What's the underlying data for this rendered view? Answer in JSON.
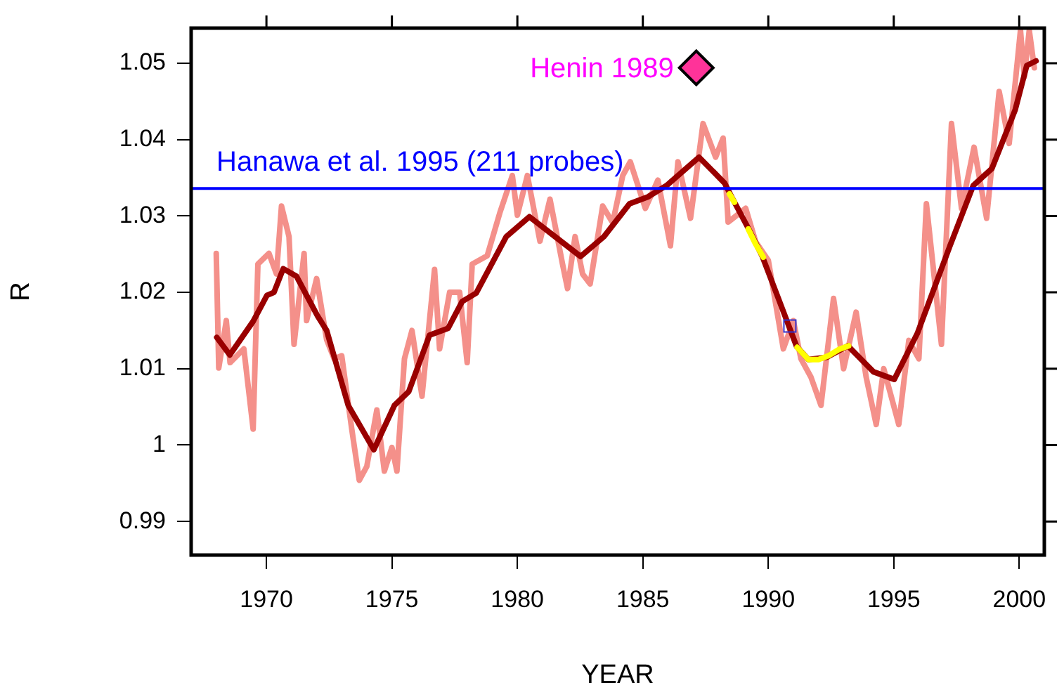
{
  "chart_data": {
    "type": "line",
    "xlabel": "YEAR",
    "ylabel": "R",
    "xlim": [
      1967,
      2001
    ],
    "xticks": [
      1970,
      1975,
      1980,
      1985,
      1990,
      1995,
      2000
    ],
    "ylim": [
      0.9856,
      1.0546
    ],
    "yticks": [
      0.99,
      1.0,
      1.01,
      1.02,
      1.03,
      1.04,
      1.05
    ],
    "grid": false,
    "legend": false,
    "annotations": [
      {
        "text": "Henin 1989",
        "x": 1987.13,
        "y": 1.0494
      }
    ],
    "ref_lines": [
      {
        "axis": "y",
        "value": 1.0336,
        "label": "Hanawa et al. 1995 (211 probes)",
        "color": "#0000ff"
      }
    ],
    "series": [
      {
        "color": "#f4908a",
        "marker": "none",
        "x": [
          1968.0,
          1968.1,
          1968.4,
          1968.55,
          1969.1,
          1969.47,
          1969.66,
          1970.1,
          1970.4,
          1970.6,
          1970.9,
          1971.1,
          1971.5,
          1971.6,
          1972.0,
          1972.4,
          1972.7,
          1973.0,
          1973.4,
          1973.7,
          1974.0,
          1974.4,
          1974.7,
          1975.0,
          1975.2,
          1975.5,
          1975.8,
          1976.2,
          1976.7,
          1976.9,
          1977.3,
          1977.7,
          1978.0,
          1978.2,
          1978.8,
          1979.3,
          1979.8,
          1980.0,
          1980.4,
          1980.9,
          1981.3,
          1981.8,
          1982.0,
          1982.3,
          1982.6,
          1982.9,
          1983.4,
          1983.8,
          1984.2,
          1984.5,
          1985.1,
          1985.6,
          1986.1,
          1986.4,
          1986.9,
          1987.4,
          1987.9,
          1988.2,
          1988.4,
          1989.1,
          1989.5,
          1990.0,
          1990.6,
          1991.0,
          1991.3,
          1991.7,
          1992.1,
          1992.6,
          1993.0,
          1993.5,
          1993.9,
          1994.3,
          1994.6,
          1995.2,
          1995.6,
          1996.0,
          1996.3,
          1996.9,
          1997.3,
          1997.7,
          1998.2,
          1998.7,
          1999.2,
          1999.6,
          2000.05,
          2000.2,
          2000.4,
          2000.6
        ],
        "values": [
          1.0251,
          1.0101,
          1.0163,
          1.0108,
          1.0126,
          1.0021,
          1.0237,
          1.0251,
          1.0224,
          1.0313,
          1.0273,
          1.0132,
          1.0251,
          1.0163,
          1.0218,
          1.0138,
          1.0113,
          1.0117,
          1.0021,
          0.9954,
          0.9972,
          1.0046,
          0.9966,
          0.9997,
          0.9966,
          1.0113,
          1.015,
          1.0064,
          1.023,
          1.0126,
          1.02,
          1.02,
          1.0108,
          1.0237,
          1.0248,
          1.0304,
          1.0353,
          1.0301,
          1.0353,
          1.0267,
          1.0322,
          1.0237,
          1.0205,
          1.0273,
          1.0224,
          1.0211,
          1.0313,
          1.0291,
          1.0353,
          1.0371,
          1.031,
          1.0347,
          1.0261,
          1.0371,
          1.0297,
          1.0421,
          1.0377,
          1.0402,
          1.0292,
          1.031,
          1.0266,
          1.0242,
          1.0126,
          1.0163,
          1.0113,
          1.0089,
          1.0052,
          1.0192,
          1.01,
          1.0174,
          1.0089,
          1.0027,
          1.01,
          1.0027,
          1.0137,
          1.0113,
          1.0316,
          1.0132,
          1.0421,
          1.031,
          1.039,
          1.0297,
          1.0463,
          1.0395,
          1.0543,
          1.0482,
          1.0543,
          1.0494
        ]
      },
      {
        "color": "#990000",
        "marker": "none",
        "x": [
          1968.02,
          1968.54,
          1969.47,
          1970.02,
          1970.3,
          1970.67,
          1971.2,
          1972.04,
          1972.4,
          1973.26,
          1974.28,
          1975.1,
          1975.67,
          1976.5,
          1977.24,
          1977.8,
          1978.36,
          1979.56,
          1980.48,
          1981.5,
          1982.52,
          1983.45,
          1984.47,
          1985.2,
          1985.95,
          1987.24,
          1988.26,
          1988.54,
          1989.28,
          1989.75,
          1990.39,
          1991.13,
          1991.6,
          1992.33,
          1993.17,
          1994.19,
          1995.02,
          1995.95,
          1997.24,
          1998.17,
          1998.91,
          1999.84,
          2000.3,
          2000.67
        ],
        "values": [
          1.0141,
          1.0118,
          1.0162,
          1.0196,
          1.02,
          1.0231,
          1.0221,
          1.0169,
          1.015,
          1.0052,
          0.9994,
          1.0052,
          1.007,
          1.0144,
          1.0153,
          1.0188,
          1.0199,
          1.0273,
          1.0299,
          1.0273,
          1.0247,
          1.0273,
          1.0316,
          1.0325,
          1.034,
          1.0377,
          1.0343,
          1.0325,
          1.0279,
          1.0248,
          1.0193,
          1.0129,
          1.0112,
          1.0115,
          1.013,
          1.0096,
          1.0086,
          1.0147,
          1.0261,
          1.034,
          1.0362,
          1.0439,
          1.0497,
          1.0503
        ]
      },
      {
        "color": "#ffff00",
        "marker": "none",
        "x": [
          1988.45,
          1988.65,
          1988.9,
          1989.2,
          1989.5,
          1989.8,
          1990.5,
          1991.15,
          1991.6,
          1992.0,
          1992.4,
          1992.8,
          1993.2
        ],
        "values": [
          1.0329,
          1.0318,
          null,
          1.0283,
          1.0263,
          1.0246,
          null,
          1.0128,
          1.0112,
          1.0112,
          1.0117,
          1.0125,
          1.013
        ]
      },
      {
        "type": "scatter",
        "color": "#ff3399",
        "marker": "diamond",
        "x": [
          1987.13
        ],
        "values": [
          1.0494
        ]
      },
      {
        "type": "scatter",
        "color": "#3333cc",
        "marker": "square",
        "x": [
          1990.86
        ],
        "values": [
          1.0156
        ]
      }
    ]
  }
}
